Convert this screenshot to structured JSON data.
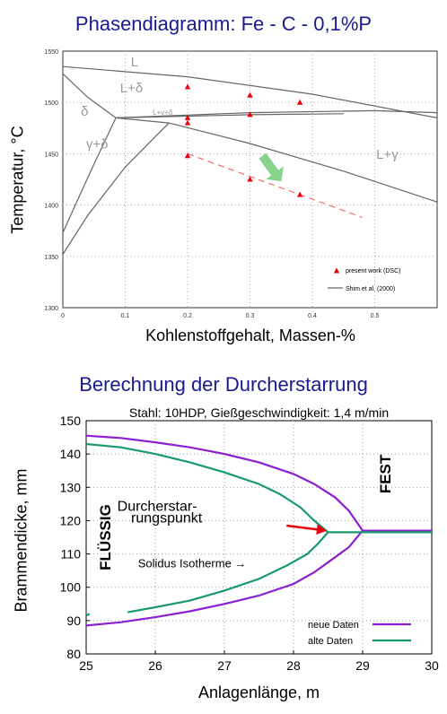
{
  "chart_data": [
    {
      "type": "line",
      "title": "Phasendiagramm: Fe - C - 0,1%P",
      "xlabel": "Kohlenstoffgehalt, Massen-%",
      "ylabel": "Temperatur, °C",
      "xlim": [
        0,
        0.6
      ],
      "ylim": [
        1300,
        1550
      ],
      "xticks": [
        0,
        0.1,
        0.2,
        0.3,
        0.4,
        0.5
      ],
      "xtick_labels": [
        "0",
        "0.1",
        "0.2",
        "0.3",
        "0.4",
        "0.5"
      ],
      "yticks": [
        1300,
        1350,
        1400,
        1450,
        1500,
        1550
      ],
      "ytick_labels": [
        "1300",
        "1350",
        "1400",
        "1450",
        "1500",
        "1550"
      ],
      "grid": true,
      "legend_position": "bottom-right",
      "phase_labels": [
        {
          "text": "L",
          "x": 0.115,
          "y": 1535
        },
        {
          "text": "L+δ",
          "x": 0.11,
          "y": 1510
        },
        {
          "text": "δ",
          "x": 0.035,
          "y": 1487
        },
        {
          "text": "L+γ+δ",
          "x": 0.16,
          "y": 1488
        },
        {
          "text": "γ+δ",
          "x": 0.055,
          "y": 1455
        },
        {
          "text": "L+γ",
          "x": 0.52,
          "y": 1445
        }
      ],
      "series": [
        {
          "name": "present work (DSC)",
          "kind": "scatter",
          "color": "#e8000b",
          "points": [
            [
              0.2,
              1515
            ],
            [
              0.2,
              1485
            ],
            [
              0.2,
              1480
            ],
            [
              0.2,
              1448
            ],
            [
              0.3,
              1507
            ],
            [
              0.3,
              1488
            ],
            [
              0.3,
              1425
            ],
            [
              0.38,
              1500
            ],
            [
              0.38,
              1410
            ]
          ]
        },
        {
          "name": "Shim et al. (2000)",
          "kind": "lines",
          "color": "#666666",
          "lines": [
            [
              [
                0,
                1535
              ],
              [
                0.2,
                1525
              ],
              [
                0.4,
                1508
              ],
              [
                0.6,
                1485
              ]
            ],
            [
              [
                0,
                1528
              ],
              [
                0.04,
                1505
              ],
              [
                0.085,
                1485
              ]
            ],
            [
              [
                0.085,
                1485
              ],
              [
                0.3,
                1490
              ],
              [
                0.5,
                1492
              ],
              [
                0.6,
                1490
              ]
            ],
            [
              [
                0.085,
                1485
              ],
              [
                0.3,
                1488
              ],
              [
                0.45,
                1489
              ]
            ],
            [
              [
                0.085,
                1485
              ],
              [
                0.05,
                1440
              ],
              [
                0.02,
                1400
              ],
              [
                0,
                1373
              ]
            ],
            [
              [
                0.17,
                1480
              ],
              [
                0.1,
                1437
              ],
              [
                0.04,
                1390
              ],
              [
                0,
                1352
              ]
            ],
            [
              [
                0.085,
                1485
              ],
              [
                0.17,
                1480
              ]
            ],
            [
              [
                0.17,
                1480
              ],
              [
                0.3,
                1460
              ],
              [
                0.45,
                1433
              ],
              [
                0.6,
                1403
              ]
            ]
          ]
        },
        {
          "name": "",
          "kind": "dashed",
          "color": "#f07070",
          "points": [
            [
              0.2,
              1450
            ],
            [
              0.48,
              1388
            ]
          ]
        }
      ],
      "arrow": {
        "color": "#7ccd7c",
        "from": [
          0.32,
          1448
        ],
        "to": [
          0.35,
          1423
        ]
      }
    },
    {
      "type": "line",
      "title": "Berechnung der Durcherstarrung",
      "subtitle": "Stahl:  10HDP,  Gießgeschwindigkeit:  1,4 m/min",
      "xlabel": "Anlagenlänge,  m",
      "ylabel": "Brammendicke,  mm",
      "xlim": [
        25,
        30
      ],
      "ylim": [
        80,
        150
      ],
      "xticks": [
        25,
        26,
        27,
        28,
        29,
        30
      ],
      "xtick_labels": [
        "25",
        "26",
        "27",
        "28",
        "29",
        "30"
      ],
      "yticks": [
        80,
        90,
        100,
        110,
        120,
        130,
        140,
        150
      ],
      "ytick_labels": [
        "80",
        "90",
        "100",
        "110",
        "120",
        "130",
        "140",
        "150"
      ],
      "grid": true,
      "legend_position": "bottom-right",
      "annotations": [
        {
          "text": "FLÜSSIG",
          "x": 25.35,
          "y": 115,
          "rotation": -90
        },
        {
          "text": "FEST",
          "x": 29.4,
          "y": 134,
          "rotation": -90
        },
        {
          "text": "Durcherstar-",
          "x": 25.45,
          "y": 123,
          "rotation": 0
        },
        {
          "text": "rungspunkt",
          "x": 25.65,
          "y": 119.5,
          "rotation": 0
        },
        {
          "text": "Solidus Isotherme  →",
          "x": 25.75,
          "y": 106,
          "rotation": 0
        }
      ],
      "pointer_arrow": {
        "color": "#e8000b",
        "from": [
          27.9,
          118.5
        ],
        "to": [
          28.48,
          117
        ]
      },
      "series": [
        {
          "name": "neue Daten",
          "color": "#8b1fd1",
          "upper": [
            [
              25,
              145.5
            ],
            [
              25.5,
              144.8
            ],
            [
              26,
              143.5
            ],
            [
              26.5,
              142
            ],
            [
              27,
              140
            ],
            [
              27.5,
              137.5
            ],
            [
              28,
              134
            ],
            [
              28.3,
              131
            ],
            [
              28.6,
              127
            ],
            [
              28.8,
              123
            ],
            [
              29,
              117
            ],
            [
              30,
              117
            ]
          ],
          "lower": [
            [
              25,
              88.5
            ],
            [
              25.5,
              89.5
            ],
            [
              26,
              91
            ],
            [
              26.5,
              92.8
            ],
            [
              27,
              95
            ],
            [
              27.5,
              97.5
            ],
            [
              28,
              101
            ],
            [
              28.3,
              104.5
            ],
            [
              28.6,
              109
            ],
            [
              28.8,
              112
            ],
            [
              29,
              117
            ]
          ]
        },
        {
          "name": "alte Daten",
          "color": "#1a9a6c",
          "upper": [
            [
              25,
              143
            ],
            [
              25.5,
              142
            ],
            [
              26,
              140
            ],
            [
              26.5,
              137.5
            ],
            [
              27,
              134.5
            ],
            [
              27.5,
              131
            ],
            [
              27.8,
              128
            ],
            [
              28.1,
              124
            ],
            [
              28.3,
              120
            ],
            [
              28.5,
              116.5
            ],
            [
              29,
              116.5
            ],
            [
              30,
              116.5
            ]
          ],
          "lower": [
            [
              25,
              91.5
            ],
            [
              25.05,
              92
            ]
          ],
          "lower2": [
            [
              25.6,
              92.5
            ],
            [
              26,
              94
            ],
            [
              26.5,
              96
            ],
            [
              27,
              99
            ],
            [
              27.5,
              102.5
            ],
            [
              27.9,
              106.5
            ],
            [
              28.2,
              110
            ],
            [
              28.35,
              113
            ],
            [
              28.5,
              116.5
            ]
          ]
        }
      ]
    }
  ],
  "top_title": "Phasendiagramm: Fe - C - 0,1%P",
  "bottom_title": "Berechnung der Durcherstarrung",
  "bottom_subtitle": "Stahl:  10HDP,  Gießgeschwindigkeit:  1,4 m/min"
}
